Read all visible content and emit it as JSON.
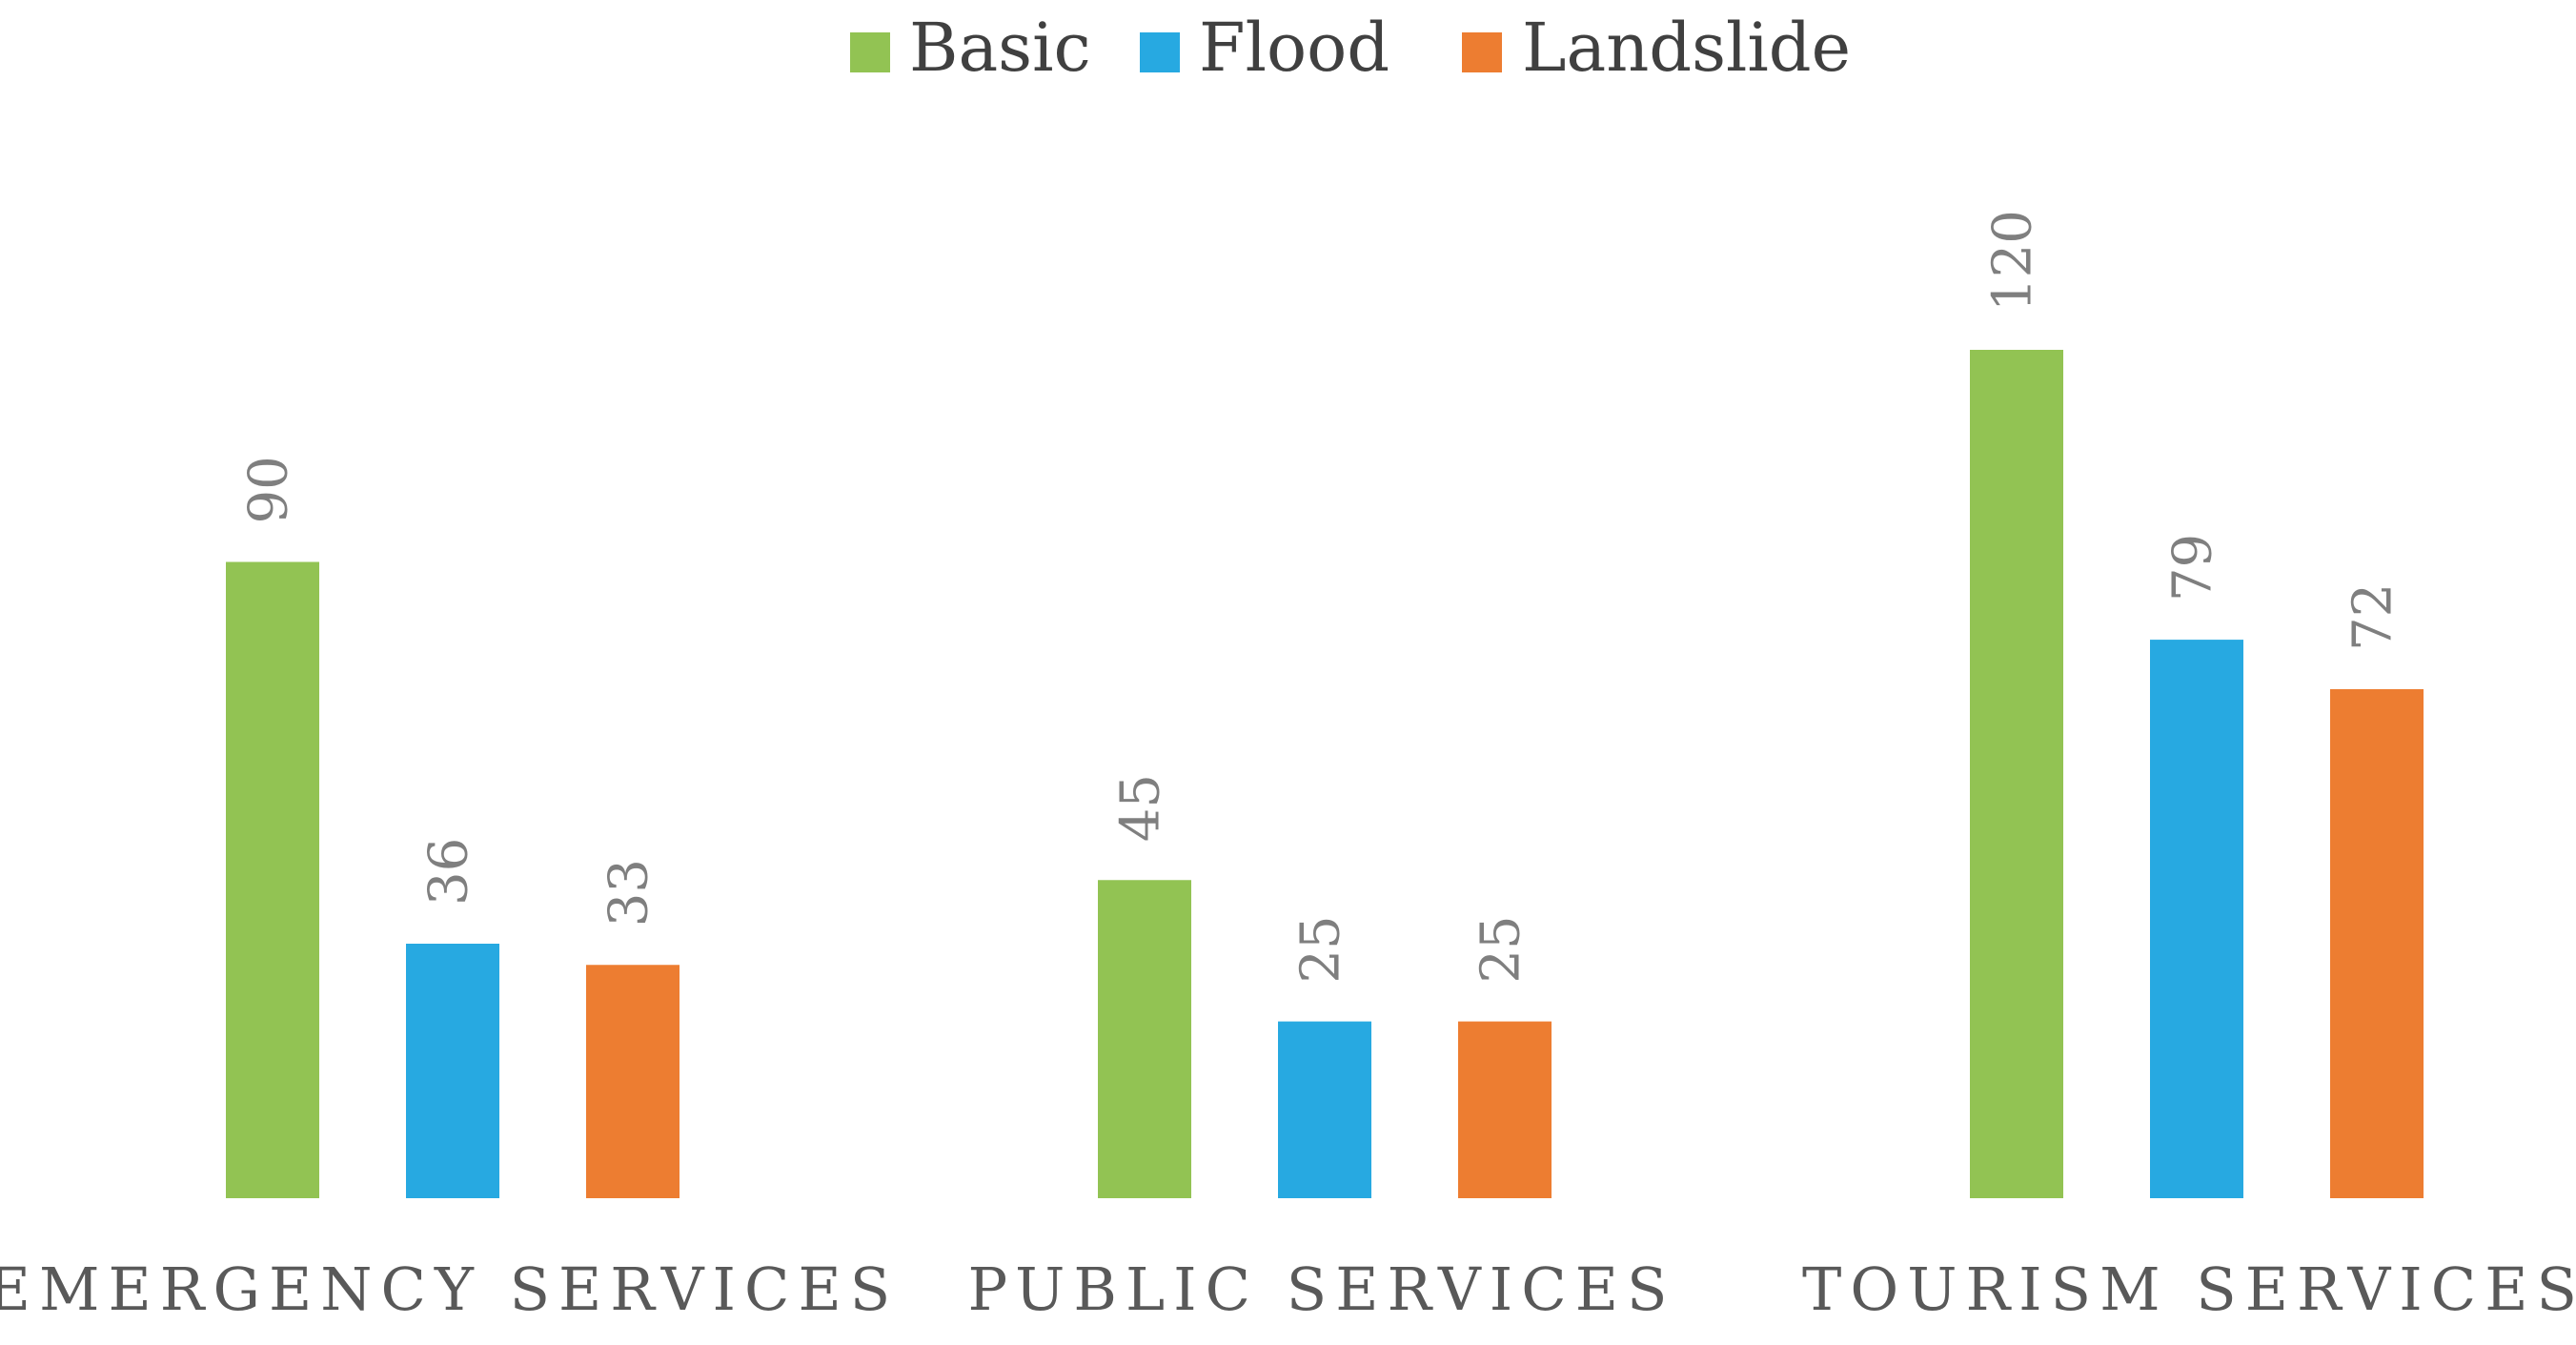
{
  "chart_data": {
    "type": "bar",
    "categories": [
      "EMERGENCY SERVICES",
      "PUBLIC SERVICES",
      "TOURISM SERVICES"
    ],
    "series": [
      {
        "name": "Basic",
        "color": "#92c353",
        "values": [
          90,
          45,
          120
        ]
      },
      {
        "name": "Flood",
        "color": "#27a9e1",
        "values": [
          36,
          25,
          79
        ]
      },
      {
        "name": "Landslide",
        "color": "#ed7d31",
        "values": [
          33,
          25,
          72
        ]
      }
    ],
    "ylim": [
      0,
      120
    ],
    "grid": false,
    "legend_position": "top-center",
    "data_labels": true,
    "data_label_orientation": "rotated"
  }
}
